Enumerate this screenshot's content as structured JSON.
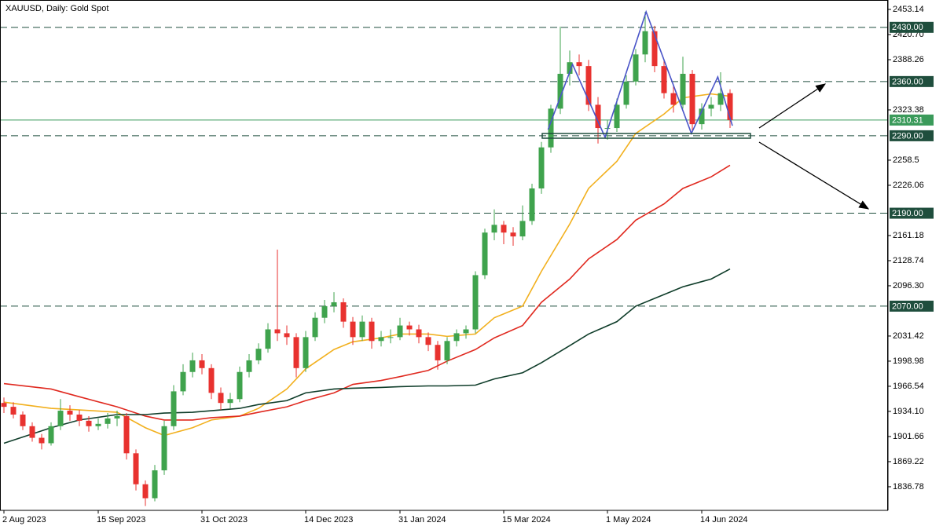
{
  "chart_data": {
    "type": "candlestick",
    "title": "XAUUSD, Daily:  Gold Spot",
    "categories": [
      "2 Aug 2023",
      null,
      null,
      null,
      null,
      null,
      null,
      null,
      null,
      null,
      "15 Sep 2023",
      null,
      null,
      null,
      null,
      null,
      null,
      null,
      null,
      null,
      null,
      "31 Oct 2023",
      null,
      null,
      null,
      null,
      null,
      null,
      null,
      null,
      null,
      null,
      "14 Dec 2023",
      null,
      null,
      null,
      null,
      null,
      null,
      null,
      null,
      null,
      "31 Jan 2024",
      null,
      null,
      null,
      null,
      null,
      null,
      null,
      null,
      null,
      null,
      "15 Mar 2024",
      null,
      null,
      null,
      null,
      null,
      null,
      null,
      null,
      null,
      null,
      "1 May 2024",
      null,
      null,
      null,
      null,
      null,
      null,
      null,
      null,
      null,
      "14 Jun 2024",
      null,
      null,
      null
    ],
    "open": [
      1945,
      1940,
      1930,
      1915,
      1900,
      1893,
      1915,
      1935,
      1930,
      1922,
      1915,
      1918,
      1925,
      1928,
      1880,
      1840,
      1822,
      1858,
      1915,
      1960,
      1985,
      2000,
      1990,
      1958,
      1945,
      1950,
      1985,
      2000,
      2015,
      2040,
      2035,
      2030,
      1990,
      2030,
      2055,
      2070,
      2075,
      2050,
      2030,
      2050,
      2025,
      2030,
      2030,
      2045,
      2040,
      2030,
      2020,
      2000,
      2025,
      2035,
      2040,
      2110,
      2165,
      2175,
      2165,
      2160,
      2180,
      2222,
      2275,
      2325,
      2370,
      2385,
      2380,
      2330,
      2300,
      2300,
      2330,
      2360,
      2395,
      2425,
      2380,
      2345,
      2330,
      2370,
      2305,
      2325,
      2330,
      2345
    ],
    "high": [
      1952,
      1946,
      1934,
      1920,
      1905,
      1920,
      1950,
      1942,
      1936,
      1928,
      1925,
      1932,
      1935,
      1932,
      1885,
      1845,
      1865,
      1922,
      1968,
      1995,
      2010,
      2008,
      1995,
      1965,
      1958,
      1992,
      2008,
      2022,
      2048,
      2143,
      2045,
      2035,
      2038,
      2062,
      2078,
      2088,
      2080,
      2056,
      2058,
      2055,
      2038,
      2040,
      2055,
      2050,
      2046,
      2036,
      2025,
      2030,
      2040,
      2045,
      2115,
      2170,
      2195,
      2180,
      2172,
      2200,
      2228,
      2282,
      2330,
      2431,
      2400,
      2395,
      2388,
      2340,
      2310,
      2338,
      2368,
      2402,
      2450,
      2432,
      2388,
      2355,
      2392,
      2375,
      2332,
      2340,
      2372,
      2350
    ],
    "low": [
      1932,
      1925,
      1910,
      1895,
      1885,
      1890,
      1910,
      1922,
      1915,
      1908,
      1910,
      1912,
      1915,
      1872,
      1832,
      1812,
      1818,
      1852,
      1910,
      1955,
      1978,
      1982,
      1950,
      1936,
      1938,
      1946,
      1978,
      1995,
      2010,
      2025,
      2020,
      1978,
      1985,
      2025,
      2048,
      2062,
      2042,
      2020,
      2025,
      2015,
      2018,
      2022,
      2026,
      2032,
      2022,
      2012,
      1988,
      1995,
      2018,
      2028,
      2035,
      2105,
      2155,
      2150,
      2148,
      2155,
      2175,
      2215,
      2268,
      2318,
      2355,
      2368,
      2322,
      2280,
      2285,
      2295,
      2325,
      2355,
      2385,
      2372,
      2338,
      2320,
      2325,
      2295,
      2298,
      2315,
      2322,
      2300
    ],
    "close": [
      1940,
      1930,
      1915,
      1900,
      1893,
      1915,
      1935,
      1930,
      1922,
      1915,
      1918,
      1925,
      1928,
      1880,
      1840,
      1822,
      1858,
      1915,
      1960,
      1985,
      2000,
      1990,
      1958,
      1945,
      1950,
      1985,
      2000,
      2015,
      2040,
      2035,
      2030,
      1990,
      2030,
      2055,
      2070,
      2075,
      2050,
      2030,
      2050,
      2025,
      2030,
      2030,
      2045,
      2040,
      2030,
      2020,
      2000,
      2025,
      2035,
      2040,
      2110,
      2165,
      2175,
      2165,
      2160,
      2180,
      2222,
      2275,
      2325,
      2370,
      2385,
      2380,
      2330,
      2300,
      2300,
      2330,
      2360,
      2395,
      2425,
      2380,
      2345,
      2330,
      2370,
      2305,
      2325,
      2330,
      2345,
      2310.31
    ],
    "up_color": "#3fa34d",
    "down_color": "#e8322f",
    "ylim": [
      1806.3,
      2465.3
    ],
    "yticks": [
      2453.14,
      {
        "value": 2420.7,
        "label": "2420.70"
      },
      2388.26,
      2323.38,
      2258.5,
      2226.06,
      2161.18,
      2128.74,
      {
        "value": 2096.3,
        "label": "2096.30"
      },
      2031.42,
      1998.98,
      1966.54,
      {
        "value": 1934.1,
        "label": "1934.10"
      },
      1901.66,
      1869.22,
      1836.78
    ],
    "overlay_x": [
      0,
      5,
      8,
      12,
      15,
      17,
      20,
      22,
      25,
      27,
      30,
      32,
      35,
      37,
      40,
      42,
      45,
      47,
      50,
      52,
      55,
      57,
      60,
      62,
      65,
      67,
      70,
      72,
      75,
      77
    ],
    "lines": [
      {
        "color": "#f2b01e",
        "values": [
          1946,
          1938,
          1936,
          1933,
          1913,
          1903,
          1913,
          1923,
          1928,
          1938,
          1963,
          1989,
          2014,
          2024,
          2029,
          2034,
          2034,
          2031,
          2034,
          2055,
          2070,
          2115,
          2176,
          2222,
          2257,
          2293,
          2318,
          2339,
          2344,
          2341
        ]
      },
      {
        "color": "#e0291f",
        "values": [
          1970,
          1963,
          1953,
          1940,
          1928,
          1923,
          1923,
          1926,
          1928,
          1933,
          1940,
          1948,
          1958,
          1969,
          1974,
          1979,
          1987,
          1999,
          2014,
          2029,
          2045,
          2075,
          2105,
          2131,
          2156,
          2181,
          2202,
          2222,
          2237,
          2252
        ]
      },
      {
        "color": "#0f3d2a",
        "values": [
          1893,
          1913,
          1923,
          1930,
          1930,
          1932,
          1933,
          1935,
          1938,
          1943,
          1948,
          1958,
          1963,
          1964,
          1965,
          1966,
          1967,
          1967,
          1968,
          1976,
          1984,
          1997,
          2019,
          2034,
          2050,
          2070,
          2085,
          2095,
          2105,
          2118
        ]
      }
    ],
    "pattern": {
      "color": "#4a55c8",
      "x": [
        57.7,
        60.3,
        63.75,
        68.1,
        72.9,
        75.7,
        77.25
      ],
      "values": [
        2298,
        2382,
        2288,
        2450,
        2293,
        2366,
        2303
      ]
    },
    "levels": [
      {
        "value": 2430,
        "label": "2430.00"
      },
      {
        "value": 2360,
        "label": "2360.00"
      },
      {
        "value": 2290,
        "label": "2290.00"
      },
      {
        "value": 2190,
        "label": "2190.00"
      },
      {
        "value": 2070,
        "label": "2070.00"
      }
    ],
    "level_color": "#1f4e3d",
    "current": 2310.31,
    "current_color": "#3a9a5a"
  }
}
